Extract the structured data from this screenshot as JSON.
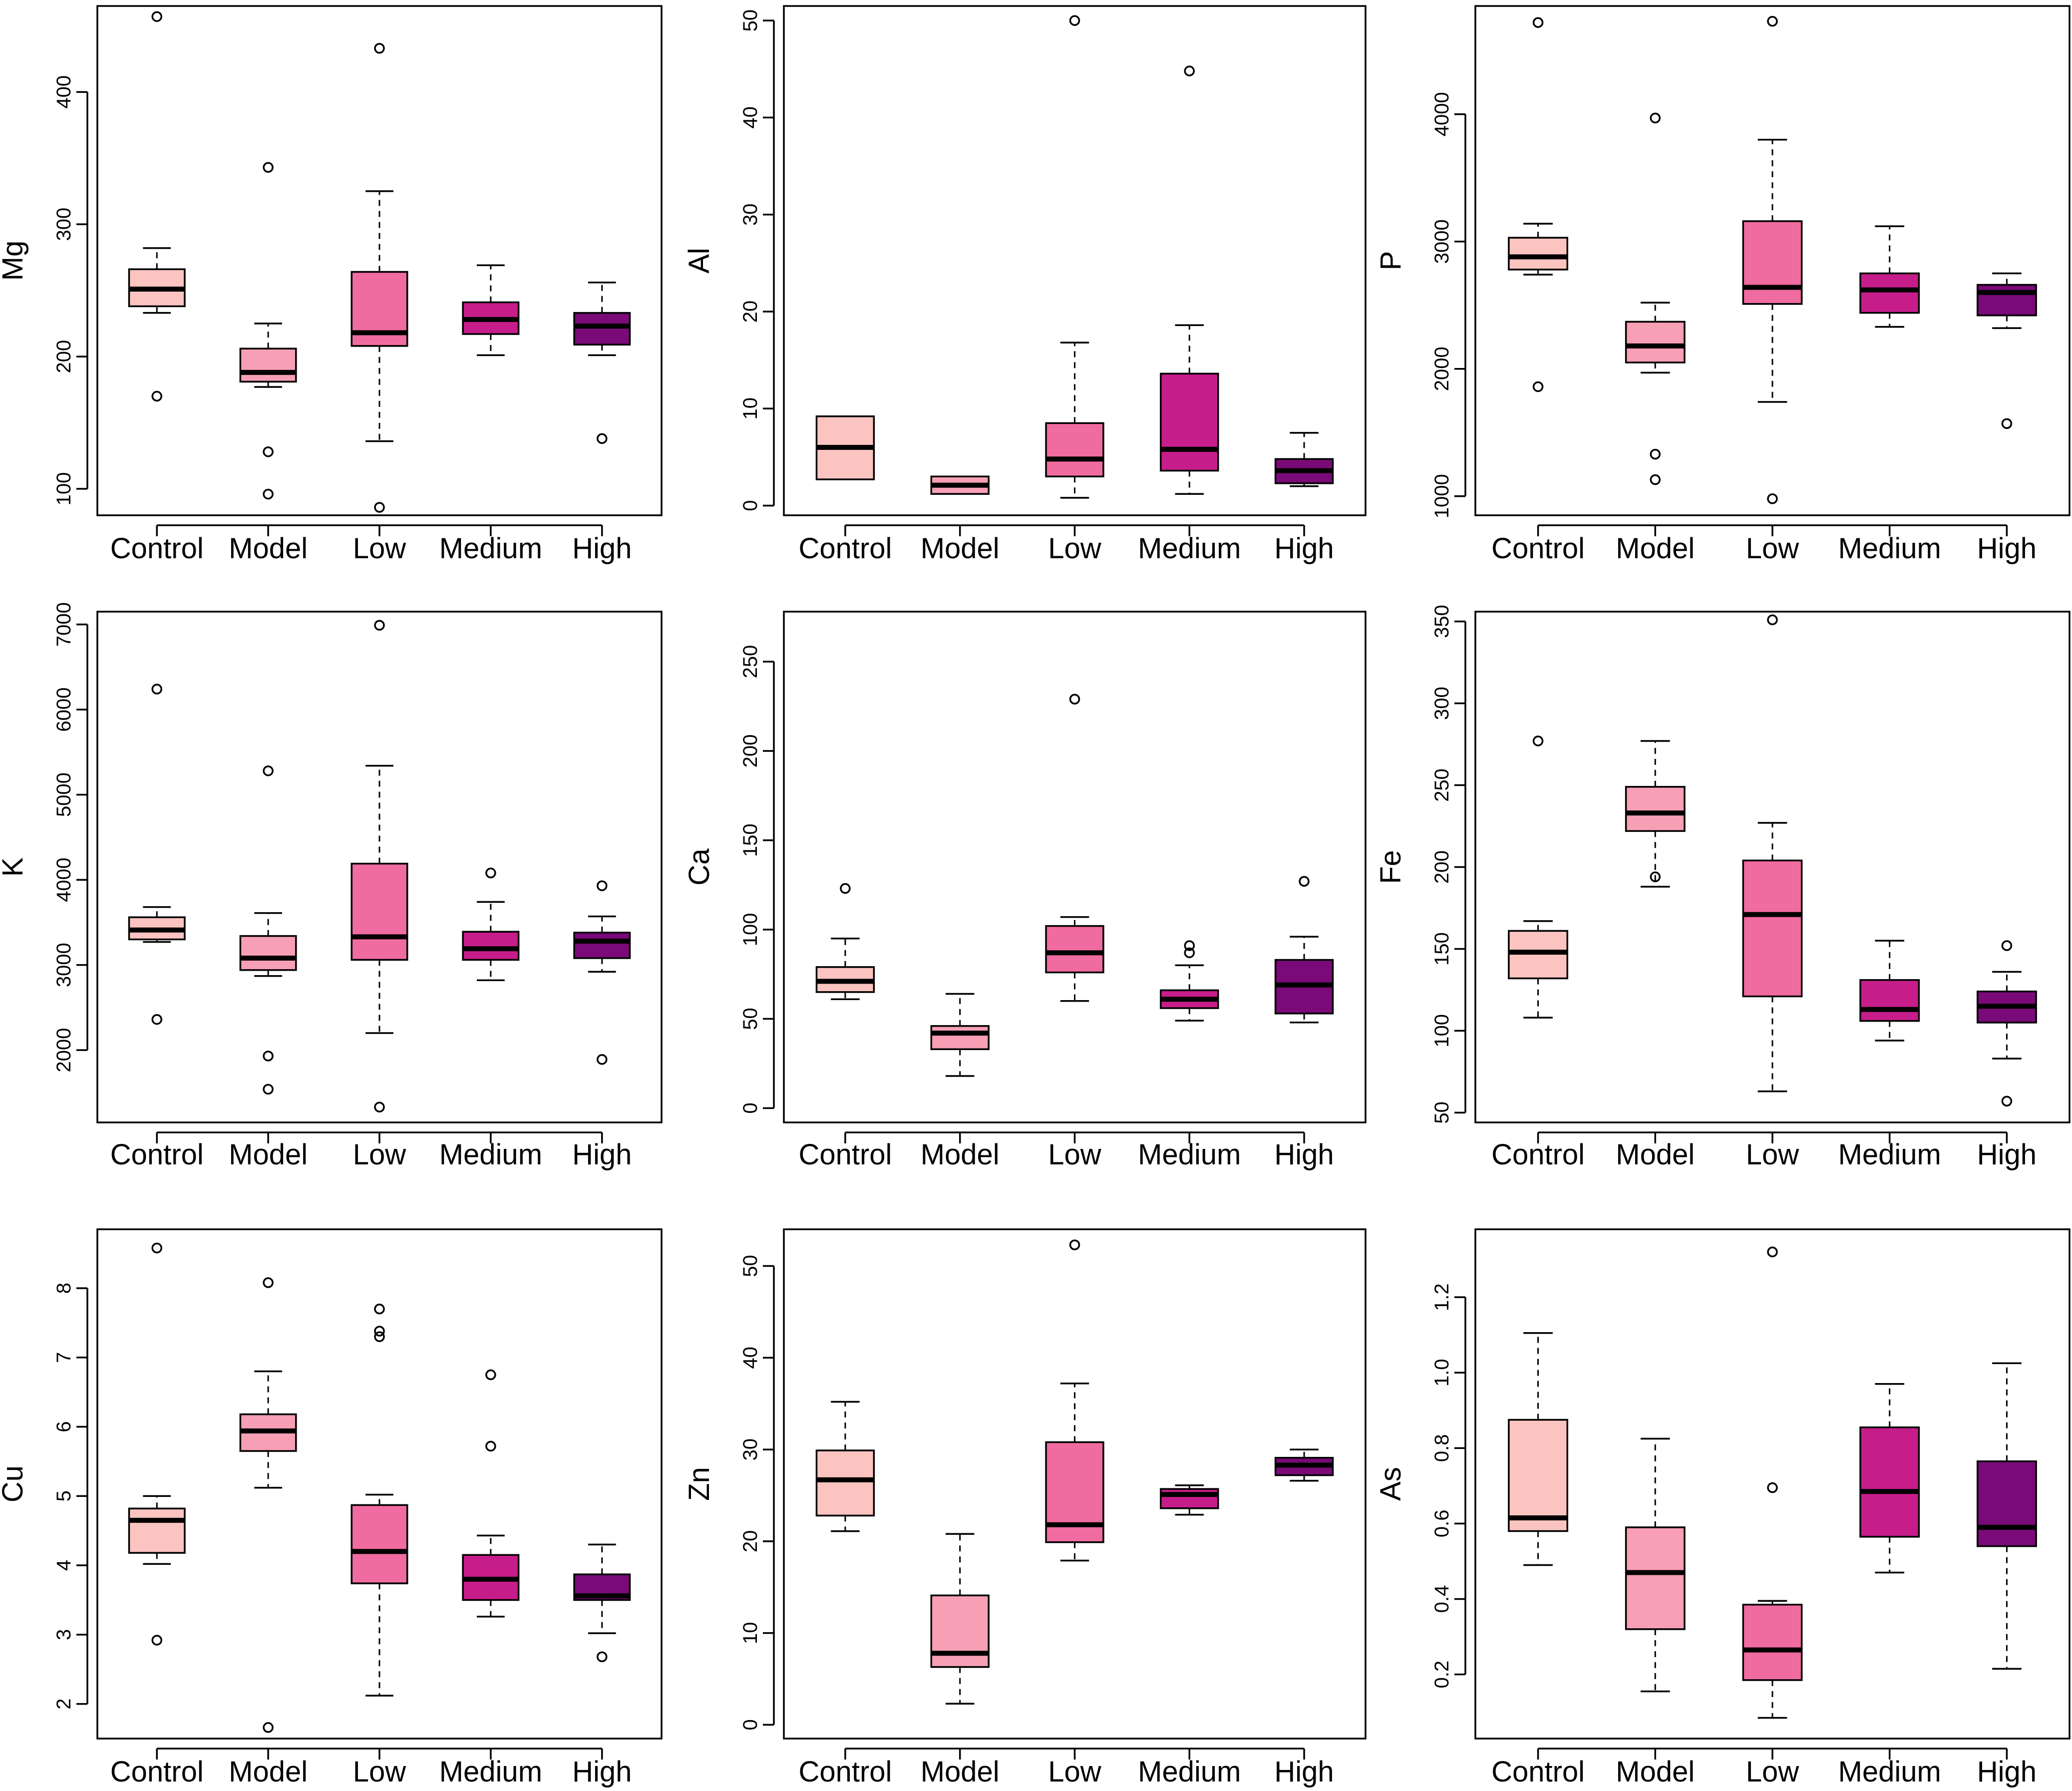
{
  "chart_data": [
    {
      "type": "boxplot",
      "ylabel": "Mg",
      "categories": [
        "Control",
        "Model",
        "Low",
        "Medium",
        "High"
      ],
      "ylim": [
        80,
        465
      ],
      "yticks": [
        100,
        200,
        300,
        400
      ],
      "boxes": [
        {
          "q1": 238,
          "median": 251,
          "q3": 266,
          "lower": 233,
          "upper": 282,
          "outliers": [
            457,
            170
          ]
        },
        {
          "q1": 181,
          "median": 188,
          "q3": 206,
          "lower": 177,
          "upper": 225,
          "outliers": [
            343,
            128,
            96
          ]
        },
        {
          "q1": 208,
          "median": 218,
          "q3": 264,
          "lower": 136,
          "upper": 325,
          "outliers": [
            433,
            86
          ]
        },
        {
          "q1": 217,
          "median": 228,
          "q3": 241,
          "lower": 201,
          "upper": 269,
          "outliers": []
        },
        {
          "q1": 209,
          "median": 223,
          "q3": 233,
          "lower": 201,
          "upper": 256,
          "outliers": [
            138
          ]
        }
      ]
    },
    {
      "type": "boxplot",
      "ylabel": "Al",
      "categories": [
        "Control",
        "Model",
        "Low",
        "Medium",
        "High"
      ],
      "ylim": [
        -1,
        51.5
      ],
      "yticks": [
        0,
        10,
        20,
        30,
        40,
        50
      ],
      "boxes": [
        {
          "q1": 2.7,
          "median": 6.0,
          "q3": 9.2,
          "lower": 2.7,
          "upper": 9.2,
          "outliers": []
        },
        {
          "q1": 1.2,
          "median": 2.1,
          "q3": 3.0,
          "lower": 1.2,
          "upper": 3.0,
          "outliers": []
        },
        {
          "q1": 3.0,
          "median": 4.8,
          "q3": 8.5,
          "lower": 0.8,
          "upper": 16.8,
          "outliers": [
            50
          ]
        },
        {
          "q1": 3.6,
          "median": 5.8,
          "q3": 13.6,
          "lower": 1.2,
          "upper": 18.6,
          "outliers": [
            44.8
          ]
        },
        {
          "q1": 2.3,
          "median": 3.6,
          "q3": 4.8,
          "lower": 2.0,
          "upper": 7.5,
          "outliers": []
        }
      ]
    },
    {
      "type": "boxplot",
      "ylabel": "P",
      "categories": [
        "Control",
        "Model",
        "Low",
        "Medium",
        "High"
      ],
      "ylim": [
        850,
        4850
      ],
      "yticks": [
        1000,
        2000,
        3000,
        4000
      ],
      "boxes": [
        {
          "q1": 2780,
          "median": 2880,
          "q3": 3030,
          "lower": 2740,
          "upper": 3140,
          "outliers": [
            4720,
            1860
          ]
        },
        {
          "q1": 2050,
          "median": 2180,
          "q3": 2370,
          "lower": 1970,
          "upper": 2520,
          "outliers": [
            3970,
            1330,
            1130
          ]
        },
        {
          "q1": 2510,
          "median": 2640,
          "q3": 3160,
          "lower": 1740,
          "upper": 3800,
          "outliers": [
            4730,
            980
          ]
        },
        {
          "q1": 2440,
          "median": 2620,
          "q3": 2750,
          "lower": 2330,
          "upper": 3120,
          "outliers": []
        },
        {
          "q1": 2420,
          "median": 2600,
          "q3": 2660,
          "lower": 2320,
          "upper": 2750,
          "outliers": [
            1570
          ]
        }
      ]
    },
    {
      "type": "boxplot",
      "ylabel": "K",
      "categories": [
        "Control",
        "Model",
        "Low",
        "Medium",
        "High"
      ],
      "ylim": [
        1150,
        7150
      ],
      "yticks": [
        2000,
        3000,
        4000,
        5000,
        6000,
        7000
      ],
      "boxes": [
        {
          "q1": 3300,
          "median": 3410,
          "q3": 3560,
          "lower": 3270,
          "upper": 3680,
          "outliers": [
            6240,
            2360
          ]
        },
        {
          "q1": 2940,
          "median": 3080,
          "q3": 3340,
          "lower": 2870,
          "upper": 3610,
          "outliers": [
            5280,
            1930,
            1540
          ]
        },
        {
          "q1": 3060,
          "median": 3330,
          "q3": 4190,
          "lower": 2200,
          "upper": 5340,
          "outliers": [
            6990,
            1330
          ]
        },
        {
          "q1": 3060,
          "median": 3190,
          "q3": 3390,
          "lower": 2820,
          "upper": 3740,
          "outliers": [
            4080
          ]
        },
        {
          "q1": 3080,
          "median": 3280,
          "q3": 3380,
          "lower": 2920,
          "upper": 3570,
          "outliers": [
            3930,
            1890
          ]
        }
      ]
    },
    {
      "type": "boxplot",
      "ylabel": "Ca",
      "categories": [
        "Control",
        "Model",
        "Low",
        "Medium",
        "High"
      ],
      "ylim": [
        -8,
        278
      ],
      "yticks": [
        0,
        50,
        100,
        150,
        200,
        250
      ],
      "boxes": [
        {
          "q1": 65,
          "median": 71,
          "q3": 79,
          "lower": 61,
          "upper": 95,
          "outliers": [
            123
          ]
        },
        {
          "q1": 33,
          "median": 42,
          "q3": 46,
          "lower": 18,
          "upper": 64,
          "outliers": []
        },
        {
          "q1": 76,
          "median": 87,
          "q3": 102,
          "lower": 60,
          "upper": 107,
          "outliers": [
            229
          ]
        },
        {
          "q1": 56,
          "median": 61,
          "q3": 66,
          "lower": 49,
          "upper": 80,
          "outliers": [
            87,
            91
          ]
        },
        {
          "q1": 53,
          "median": 69,
          "q3": 83,
          "lower": 48,
          "upper": 96,
          "outliers": [
            127
          ]
        }
      ]
    },
    {
      "type": "boxplot",
      "ylabel": "Fe",
      "categories": [
        "Control",
        "Model",
        "Low",
        "Medium",
        "High"
      ],
      "ylim": [
        44,
        356
      ],
      "yticks": [
        50,
        100,
        150,
        200,
        250,
        300,
        350
      ],
      "boxes": [
        {
          "q1": 132,
          "median": 148,
          "q3": 161,
          "lower": 108,
          "upper": 167,
          "outliers": [
            277
          ]
        },
        {
          "q1": 222,
          "median": 233,
          "q3": 249,
          "lower": 188,
          "upper": 277,
          "outliers": [
            194
          ]
        },
        {
          "q1": 121,
          "median": 171,
          "q3": 204,
          "lower": 63,
          "upper": 227,
          "outliers": [
            351
          ]
        },
        {
          "q1": 106,
          "median": 113,
          "q3": 131,
          "lower": 94,
          "upper": 155,
          "outliers": []
        },
        {
          "q1": 105,
          "median": 115,
          "q3": 124,
          "lower": 83,
          "upper": 136,
          "outliers": [
            152,
            57
          ]
        }
      ]
    },
    {
      "type": "boxplot",
      "ylabel": "Cu",
      "categories": [
        "Control",
        "Model",
        "Low",
        "Medium",
        "High"
      ],
      "ylim": [
        1.5,
        8.85
      ],
      "yticks": [
        2,
        3,
        4,
        5,
        6,
        7,
        8
      ],
      "boxes": [
        {
          "q1": 4.18,
          "median": 4.65,
          "q3": 4.82,
          "lower": 4.02,
          "upper": 5.0,
          "outliers": [
            8.58,
            2.92
          ]
        },
        {
          "q1": 5.65,
          "median": 5.94,
          "q3": 6.18,
          "lower": 5.12,
          "upper": 6.8,
          "outliers": [
            8.08,
            1.66
          ]
        },
        {
          "q1": 3.74,
          "median": 4.2,
          "q3": 4.87,
          "lower": 2.12,
          "upper": 5.02,
          "outliers": [
            7.7,
            7.38,
            7.3
          ]
        },
        {
          "q1": 3.5,
          "median": 3.8,
          "q3": 4.15,
          "lower": 3.26,
          "upper": 4.43,
          "outliers": [
            6.75,
            5.72
          ]
        },
        {
          "q1": 3.5,
          "median": 3.56,
          "q3": 3.87,
          "lower": 3.02,
          "upper": 4.3,
          "outliers": [
            2.68
          ]
        }
      ]
    },
    {
      "type": "boxplot",
      "ylabel": "Zn",
      "categories": [
        "Control",
        "Model",
        "Low",
        "Medium",
        "High"
      ],
      "ylim": [
        -1.5,
        54
      ],
      "yticks": [
        0,
        10,
        20,
        30,
        40,
        50
      ],
      "boxes": [
        {
          "q1": 22.8,
          "median": 26.7,
          "q3": 29.9,
          "lower": 21.1,
          "upper": 35.2,
          "outliers": []
        },
        {
          "q1": 6.3,
          "median": 7.8,
          "q3": 14.1,
          "lower": 2.3,
          "upper": 20.8,
          "outliers": []
        },
        {
          "q1": 19.9,
          "median": 21.8,
          "q3": 30.8,
          "lower": 17.9,
          "upper": 37.2,
          "outliers": [
            52.3
          ]
        },
        {
          "q1": 23.6,
          "median": 25.1,
          "q3": 25.7,
          "lower": 22.9,
          "upper": 26.1,
          "outliers": []
        },
        {
          "q1": 27.2,
          "median": 28.3,
          "q3": 29.1,
          "lower": 26.6,
          "upper": 30.0,
          "outliers": []
        }
      ]
    },
    {
      "type": "boxplot",
      "ylabel": "As",
      "categories": [
        "Control",
        "Model",
        "Low",
        "Medium",
        "High"
      ],
      "ylim": [
        0.03,
        1.38
      ],
      "yticks": [
        0.2,
        0.4,
        0.6,
        0.8,
        1.0,
        1.2
      ],
      "yticklabels": [
        "0.2",
        "0.4",
        "0.6",
        "0.8",
        "1.0",
        "1.2"
      ],
      "boxes": [
        {
          "q1": 0.58,
          "median": 0.615,
          "q3": 0.875,
          "lower": 0.49,
          "upper": 1.105,
          "outliers": []
        },
        {
          "q1": 0.32,
          "median": 0.47,
          "q3": 0.59,
          "lower": 0.155,
          "upper": 0.825,
          "outliers": []
        },
        {
          "q1": 0.185,
          "median": 0.265,
          "q3": 0.385,
          "lower": 0.085,
          "upper": 0.395,
          "outliers": [
            1.32,
            0.695
          ]
        },
        {
          "q1": 0.565,
          "median": 0.685,
          "q3": 0.855,
          "lower": 0.47,
          "upper": 0.97,
          "outliers": []
        },
        {
          "q1": 0.54,
          "median": 0.59,
          "q3": 0.765,
          "lower": 0.215,
          "upper": 1.025,
          "outliers": []
        }
      ]
    }
  ],
  "colors": {
    "Control": "#fbc4c0",
    "Model": "#f79fb5",
    "Low": "#f06ba0",
    "Medium": "#c71d8a",
    "High": "#7a0a77"
  }
}
